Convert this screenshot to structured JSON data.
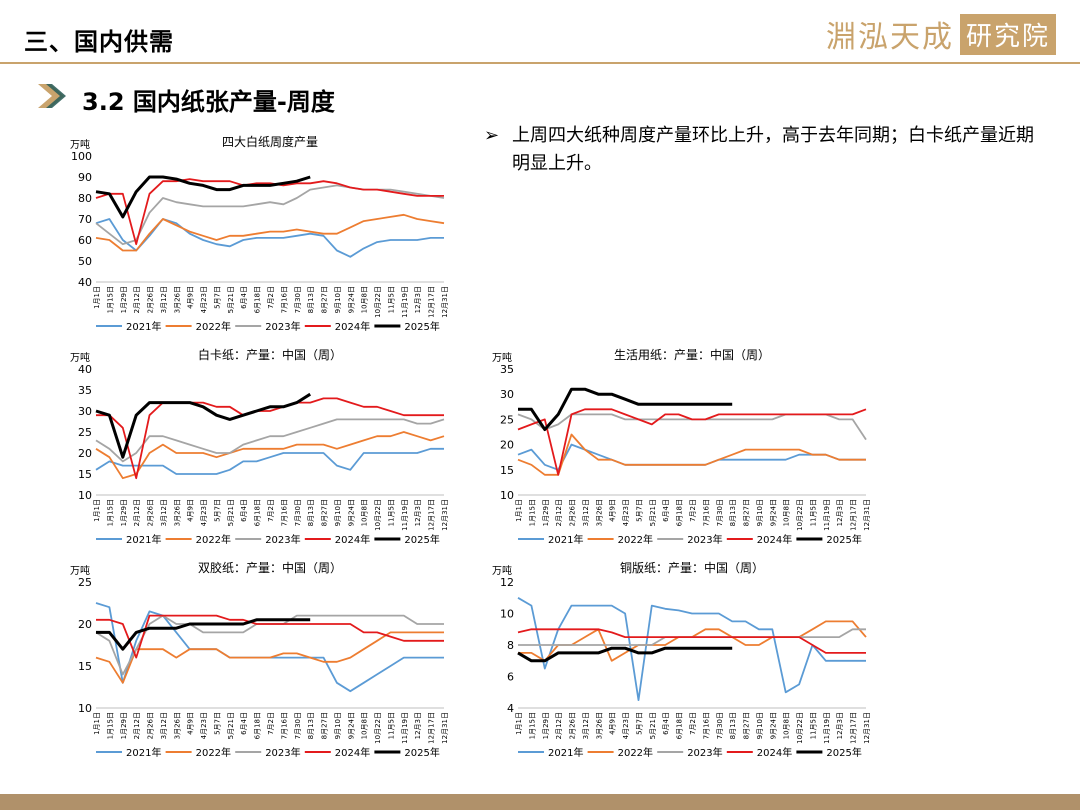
{
  "header": {
    "section_title": "三、国内供需",
    "logo_text": "淵泓天成",
    "logo_box": "研究院"
  },
  "subtitle": "3.2 国内纸张产量-周度",
  "bullet": {
    "marker": "➢",
    "text": "上周四大纸种周度产量环比上升，高于去年同期；白卡纸产量近期明显上升。"
  },
  "colors": {
    "accent": "#c9a36c",
    "footer": "#b0916a"
  },
  "chart_data": [
    {
      "type": "line",
      "title": "四大白纸周度产量",
      "unit": "万吨",
      "ylim": [
        40,
        100
      ],
      "yticks": [
        40,
        50,
        60,
        70,
        80,
        90,
        100
      ],
      "xticks": [
        "1月1日",
        "1月15日",
        "1月29日",
        "2月12日",
        "2月26日",
        "3月12日",
        "3月26日",
        "4月9日",
        "4月23日",
        "5月7日",
        "5月21日",
        "6月4日",
        "6月18日",
        "7月2日",
        "7月16日",
        "7月30日",
        "8月13日",
        "8月27日",
        "9月10日",
        "9月24日",
        "10月8日",
        "10月22日",
        "11月5日",
        "11月19日",
        "12月3日",
        "12月17日",
        "12月31日"
      ],
      "series": [
        {
          "name": "2021年",
          "color": "#5b9bd5",
          "values": [
            68,
            70,
            60,
            55,
            62,
            70,
            68,
            63,
            60,
            58,
            57,
            60,
            61,
            61,
            61,
            62,
            63,
            62,
            55,
            52,
            56,
            59,
            60,
            60,
            60,
            61,
            61
          ]
        },
        {
          "name": "2022年",
          "color": "#ed7d31",
          "values": [
            61,
            60,
            55,
            55,
            63,
            70,
            67,
            64,
            62,
            60,
            62,
            62,
            63,
            64,
            64,
            65,
            64,
            63,
            63,
            66,
            69,
            70,
            71,
            72,
            70,
            69,
            68
          ]
        },
        {
          "name": "2023年",
          "color": "#a5a5a5",
          "values": [
            68,
            63,
            58,
            60,
            73,
            80,
            78,
            77,
            76,
            76,
            76,
            76,
            77,
            78,
            77,
            80,
            84,
            85,
            86,
            85,
            84,
            84,
            84,
            83,
            82,
            81,
            80
          ]
        },
        {
          "name": "2024年",
          "color": "#e31a1c",
          "values": [
            80,
            82,
            82,
            58,
            82,
            88,
            88,
            89,
            88,
            88,
            88,
            86,
            87,
            87,
            86,
            87,
            87,
            88,
            87,
            85,
            84,
            84,
            83,
            82,
            81,
            81,
            81
          ]
        },
        {
          "name": "2025年",
          "color": "#000000",
          "values": [
            83,
            82,
            71,
            83,
            90,
            90,
            89,
            87,
            86,
            84,
            84,
            86,
            86,
            86,
            87,
            88,
            90
          ]
        }
      ]
    },
    {
      "type": "line",
      "title": "白卡纸：产量：中国（周）",
      "unit": "万吨",
      "ylim": [
        10,
        40
      ],
      "yticks": [
        10,
        15,
        20,
        25,
        30,
        35,
        40
      ],
      "xticks": [
        "1月1日",
        "1月15日",
        "1月29日",
        "2月12日",
        "2月26日",
        "3月12日",
        "3月26日",
        "4月9日",
        "4月23日",
        "5月7日",
        "5月21日",
        "6月4日",
        "6月18日",
        "7月2日",
        "7月16日",
        "7月30日",
        "8月13日",
        "8月27日",
        "9月10日",
        "9月24日",
        "10月8日",
        "10月22日",
        "11月5日",
        "11月19日",
        "12月3日",
        "12月17日",
        "12月31日"
      ],
      "series": [
        {
          "name": "2021年",
          "color": "#5b9bd5",
          "values": [
            16,
            18,
            17,
            17,
            17,
            17,
            15,
            15,
            15,
            15,
            16,
            18,
            18,
            19,
            20,
            20,
            20,
            20,
            17,
            16,
            20,
            20,
            20,
            20,
            20,
            21,
            21
          ]
        },
        {
          "name": "2022年",
          "color": "#ed7d31",
          "values": [
            21,
            19,
            14,
            15,
            20,
            22,
            20,
            20,
            20,
            19,
            20,
            21,
            21,
            21,
            21,
            22,
            22,
            22,
            21,
            22,
            23,
            24,
            24,
            25,
            24,
            23,
            24
          ]
        },
        {
          "name": "2023年",
          "color": "#a5a5a5",
          "values": [
            23,
            21,
            18,
            20,
            24,
            24,
            23,
            22,
            21,
            20,
            20,
            22,
            23,
            24,
            24,
            25,
            26,
            27,
            28,
            28,
            28,
            28,
            28,
            28,
            27,
            27,
            28
          ]
        },
        {
          "name": "2024年",
          "color": "#e31a1c",
          "values": [
            29,
            29,
            26,
            14,
            29,
            32,
            32,
            32,
            32,
            31,
            31,
            29,
            30,
            30,
            31,
            32,
            32,
            33,
            33,
            32,
            31,
            31,
            30,
            29,
            29,
            29,
            29
          ]
        },
        {
          "name": "2025年",
          "color": "#000000",
          "values": [
            30,
            29,
            19,
            29,
            32,
            32,
            32,
            32,
            31,
            29,
            28,
            29,
            30,
            31,
            31,
            32,
            34
          ]
        }
      ]
    },
    {
      "type": "line",
      "title": "生活用纸：产量：中国（周）",
      "unit": "万吨",
      "ylim": [
        10,
        35
      ],
      "yticks": [
        10,
        15,
        20,
        25,
        30,
        35
      ],
      "xticks": [
        "1月1日",
        "1月15日",
        "1月29日",
        "2月12日",
        "2月26日",
        "3月12日",
        "3月26日",
        "4月9日",
        "4月23日",
        "5月7日",
        "5月21日",
        "6月4日",
        "6月18日",
        "7月2日",
        "7月16日",
        "7月30日",
        "8月13日",
        "8月27日",
        "9月10日",
        "9月24日",
        "10月8日",
        "10月22日",
        "11月5日",
        "11月19日",
        "12月3日",
        "12月17日",
        "12月31日"
      ],
      "series": [
        {
          "name": "2021年",
          "color": "#5b9bd5",
          "values": [
            18,
            19,
            16,
            15,
            20,
            19,
            18,
            17,
            16,
            16,
            16,
            16,
            16,
            16,
            16,
            17,
            17,
            17,
            17,
            17,
            17,
            18,
            18,
            18,
            17,
            17,
            17
          ]
        },
        {
          "name": "2022年",
          "color": "#ed7d31",
          "values": [
            17,
            16,
            14,
            14,
            22,
            19,
            17,
            17,
            16,
            16,
            16,
            16,
            16,
            16,
            16,
            17,
            18,
            19,
            19,
            19,
            19,
            19,
            18,
            18,
            17,
            17,
            17
          ]
        },
        {
          "name": "2023年",
          "color": "#a5a5a5",
          "values": [
            26,
            25,
            23,
            24,
            26,
            26,
            26,
            26,
            25,
            25,
            25,
            25,
            25,
            25,
            25,
            25,
            25,
            25,
            25,
            25,
            26,
            26,
            26,
            26,
            25,
            25,
            21
          ]
        },
        {
          "name": "2024年",
          "color": "#e31a1c",
          "values": [
            23,
            24,
            25,
            14,
            26,
            27,
            27,
            27,
            26,
            25,
            24,
            26,
            26,
            25,
            25,
            26,
            26,
            26,
            26,
            26,
            26,
            26,
            26,
            26,
            26,
            26,
            27
          ]
        },
        {
          "name": "2025年",
          "color": "#000000",
          "values": [
            27,
            27,
            23,
            26,
            31,
            31,
            30,
            30,
            29,
            28,
            28,
            28,
            28,
            28,
            28,
            28,
            28
          ]
        }
      ]
    },
    {
      "type": "line",
      "title": "双胶纸：产量：中国（周）",
      "unit": "万吨",
      "ylim": [
        10,
        25
      ],
      "yticks": [
        10,
        15,
        20,
        25
      ],
      "xticks": [
        "1月1日",
        "1月15日",
        "1月29日",
        "2月12日",
        "2月26日",
        "3月12日",
        "3月26日",
        "4月9日",
        "4月23日",
        "5月7日",
        "5月21日",
        "6月4日",
        "6月18日",
        "7月2日",
        "7月16日",
        "7月30日",
        "8月13日",
        "8月27日",
        "9月10日",
        "9月24日",
        "10月8日",
        "10月22日",
        "11月5日",
        "11月19日",
        "12月3日",
        "12月17日",
        "12月31日"
      ],
      "series": [
        {
          "name": "2021年",
          "color": "#5b9bd5",
          "values": [
            22.5,
            22,
            13,
            18,
            21.5,
            21,
            19,
            17,
            17,
            17,
            16,
            16,
            16,
            16,
            16,
            16,
            16,
            16,
            13,
            12,
            13,
            14,
            15,
            16,
            16,
            16,
            16
          ]
        },
        {
          "name": "2022年",
          "color": "#ed7d31",
          "values": [
            16,
            15.5,
            13,
            17,
            17,
            17,
            16,
            17,
            17,
            17,
            16,
            16,
            16,
            16,
            16.5,
            16.5,
            16,
            15.5,
            15.5,
            16,
            17,
            18,
            19,
            19,
            19,
            19,
            19
          ]
        },
        {
          "name": "2023年",
          "color": "#a5a5a5",
          "values": [
            19,
            18,
            14,
            17,
            20,
            21,
            20,
            20,
            19,
            19,
            19,
            19,
            20,
            20,
            20,
            21,
            21,
            21,
            21,
            21,
            21,
            21,
            21,
            21,
            20,
            20,
            20
          ]
        },
        {
          "name": "2024年",
          "color": "#e31a1c",
          "values": [
            20.5,
            20.5,
            20,
            16,
            21,
            21,
            21,
            21,
            21,
            21,
            20.5,
            20.5,
            20,
            20,
            20,
            20,
            20,
            20,
            20,
            20,
            19,
            19,
            18.5,
            18,
            18,
            18,
            18
          ]
        },
        {
          "name": "2025年",
          "color": "#000000",
          "values": [
            19,
            19,
            17,
            19,
            19.5,
            19.5,
            19.5,
            20,
            20,
            20,
            20,
            20,
            20.5,
            20.5,
            20.5,
            20.5,
            20.5
          ]
        }
      ]
    },
    {
      "type": "line",
      "title": "铜版纸：产量：中国（周）",
      "unit": "万吨",
      "ylim": [
        4,
        12
      ],
      "yticks": [
        4,
        6,
        8,
        10,
        12
      ],
      "xticks": [
        "1月1日",
        "1月15日",
        "1月29日",
        "2月12日",
        "2月26日",
        "3月12日",
        "3月26日",
        "4月9日",
        "4月23日",
        "5月7日",
        "5月21日",
        "6月4日",
        "6月18日",
        "7月2日",
        "7月16日",
        "7月30日",
        "8月13日",
        "8月27日",
        "9月10日",
        "9月24日",
        "10月8日",
        "10月22日",
        "11月5日",
        "11月19日",
        "12月3日",
        "12月17日",
        "12月31日"
      ],
      "series": [
        {
          "name": "2021年",
          "color": "#5b9bd5",
          "values": [
            11,
            10.5,
            6.5,
            9,
            10.5,
            10.5,
            10.5,
            10.5,
            10,
            4.5,
            10.5,
            10.3,
            10.2,
            10,
            10,
            10,
            9.5,
            9.5,
            9,
            9,
            5,
            5.5,
            8,
            7,
            7,
            7,
            7
          ]
        },
        {
          "name": "2022年",
          "color": "#ed7d31",
          "values": [
            7.5,
            7.5,
            7,
            8,
            8,
            8.5,
            9,
            7,
            7.5,
            8,
            8,
            8,
            8.5,
            8.5,
            9,
            9,
            8.5,
            8,
            8,
            8.5,
            8.5,
            8.5,
            9,
            9.5,
            9.5,
            9.5,
            8.5
          ]
        },
        {
          "name": "2023年",
          "color": "#a5a5a5",
          "values": [
            8,
            8,
            8,
            8,
            8,
            8,
            8,
            8,
            8,
            8,
            8,
            8.5,
            8.5,
            8.5,
            8.5,
            8.5,
            8.5,
            8.5,
            8.5,
            8.5,
            8.5,
            8.5,
            8.5,
            8.5,
            8.5,
            9,
            9
          ]
        },
        {
          "name": "2024年",
          "color": "#e31a1c",
          "values": [
            8.8,
            9,
            9,
            9,
            9,
            9,
            9,
            8.8,
            8.5,
            8.5,
            8.5,
            8.5,
            8.5,
            8.5,
            8.5,
            8.5,
            8.5,
            8.5,
            8.5,
            8.5,
            8.5,
            8.5,
            8,
            7.5,
            7.5,
            7.5,
            7.5
          ]
        },
        {
          "name": "2025年",
          "color": "#000000",
          "values": [
            7.5,
            7,
            7,
            7.5,
            7.5,
            7.5,
            7.5,
            7.8,
            7.8,
            7.5,
            7.5,
            7.8,
            7.8,
            7.8,
            7.8,
            7.8,
            7.8
          ]
        }
      ]
    }
  ]
}
